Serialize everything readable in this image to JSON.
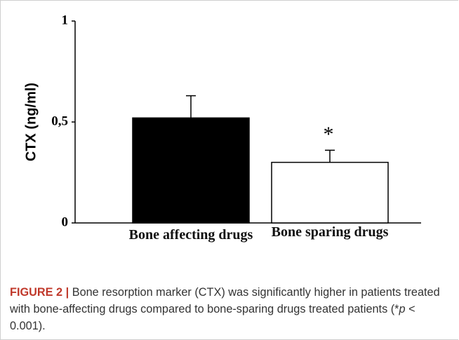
{
  "chart_data": {
    "type": "bar",
    "ylabel": "CTX (ng/ml)",
    "categories": [
      "Bone affecting drugs",
      "Bone sparing drugs"
    ],
    "series": [
      {
        "values": [
          0.52,
          0.3
        ],
        "errors": [
          0.11,
          0.06
        ],
        "colors": [
          "#000000",
          "#ffffff"
        ]
      }
    ],
    "annotation": "*",
    "ylim": [
      0,
      1
    ],
    "yticks": [
      0,
      {
        "value": 0.5,
        "label": "0,5"
      },
      1
    ],
    "grid": false
  },
  "caption": {
    "label": "FIGURE 2 |",
    "text_before": "Bone resorption marker (CTX) was significantly higher in patients treated with bone-affecting drugs compared to bone-sparing drugs treated patients (*",
    "italic": "p",
    "text_after": " < 0.001)."
  }
}
